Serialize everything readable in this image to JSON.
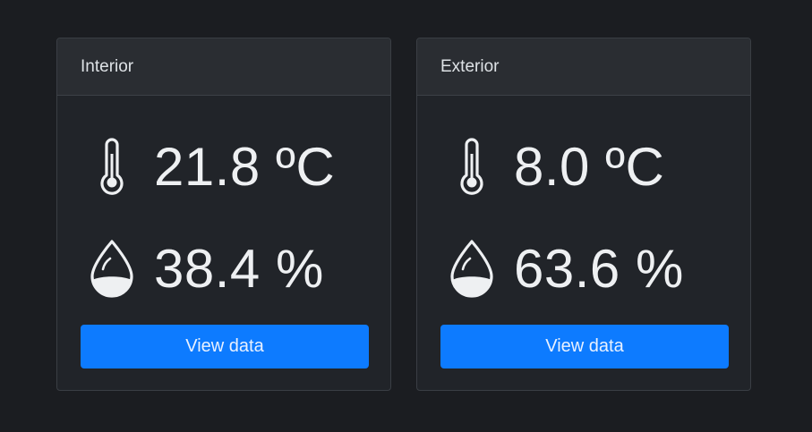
{
  "cards": [
    {
      "title": "Interior",
      "temperature": "21.8 ºC",
      "humidity": "38.4 %",
      "button_label": "View data"
    },
    {
      "title": "Exterior",
      "temperature": "8.0 ºC",
      "humidity": "63.6 %",
      "button_label": "View data"
    }
  ],
  "icons": {
    "temperature": "thermometer-icon",
    "humidity": "water-drop-icon"
  },
  "colors": {
    "background": "#1b1d21",
    "card": "#212429",
    "card_header": "#2a2d32",
    "accent": "#0d7bff",
    "text": "#eef0f2"
  }
}
